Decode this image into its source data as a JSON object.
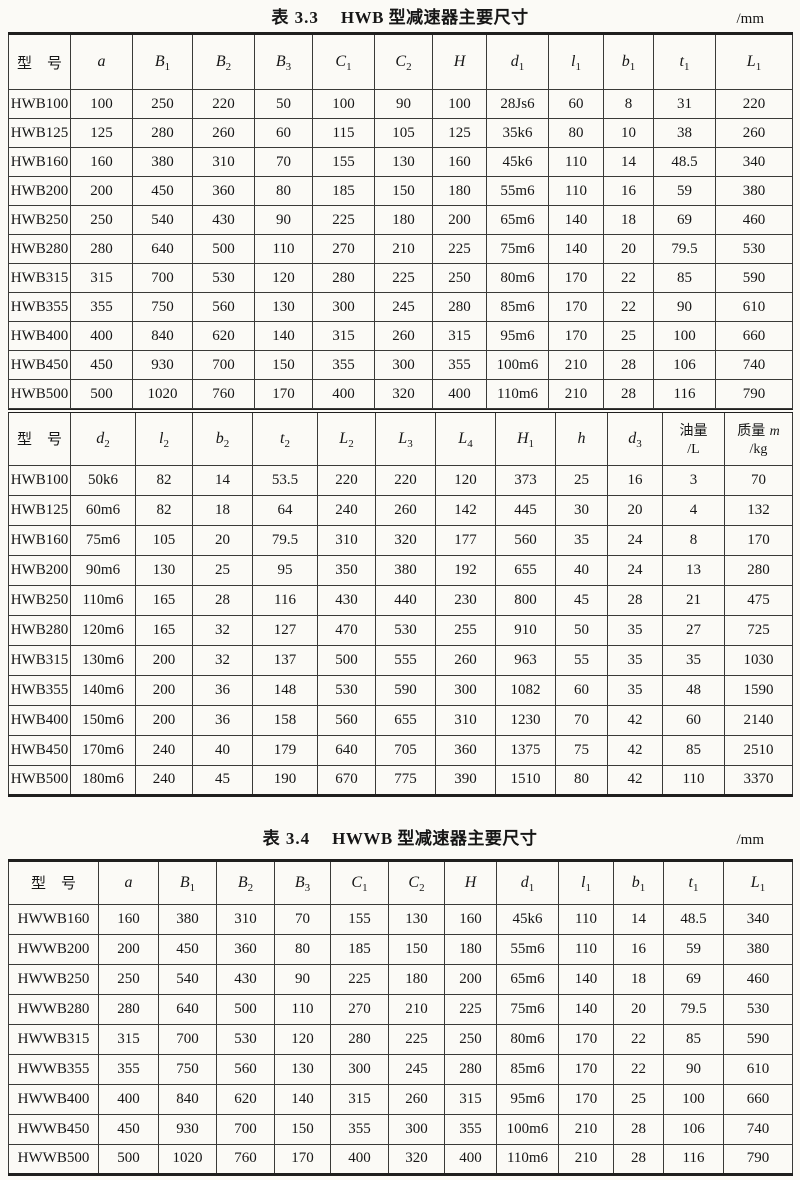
{
  "colors": {
    "paper": "#fbfaf6",
    "ink": "#161616",
    "rule": "#1f1f1e"
  },
  "table1": {
    "caption_label": "表 3.3",
    "caption_title": "HWB 型减速器主要尺寸",
    "unit": "/mm",
    "section1": {
      "headers": [
        [
          {
            "t": "型　号",
            "cjk": true
          }
        ],
        [
          {
            "t": "a",
            "i": true
          }
        ],
        [
          {
            "t": "B",
            "i": true
          },
          {
            "t": "1",
            "sub": true
          }
        ],
        [
          {
            "t": "B",
            "i": true
          },
          {
            "t": "2",
            "sub": true
          }
        ],
        [
          {
            "t": "B",
            "i": true
          },
          {
            "t": "3",
            "sub": true
          }
        ],
        [
          {
            "t": "C",
            "i": true
          },
          {
            "t": "1",
            "sub": true
          }
        ],
        [
          {
            "t": "C",
            "i": true
          },
          {
            "t": "2",
            "sub": true
          }
        ],
        [
          {
            "t": "H",
            "i": true
          }
        ],
        [
          {
            "t": "d",
            "i": true
          },
          {
            "t": "1",
            "sub": true
          }
        ],
        [
          {
            "t": "l",
            "i": true
          },
          {
            "t": "1",
            "sub": true
          }
        ],
        [
          {
            "t": "b",
            "i": true
          },
          {
            "t": "1",
            "sub": true
          }
        ],
        [
          {
            "t": "t",
            "i": true
          },
          {
            "t": "1",
            "sub": true
          }
        ],
        [
          {
            "t": "L",
            "i": true
          },
          {
            "t": "1",
            "sub": true
          }
        ]
      ],
      "rows": [
        [
          "HWB100",
          "100",
          "250",
          "220",
          "50",
          "100",
          "90",
          "100",
          "28Js6",
          "60",
          "8",
          "31",
          "220"
        ],
        [
          "HWB125",
          "125",
          "280",
          "260",
          "60",
          "115",
          "105",
          "125",
          "35k6",
          "80",
          "10",
          "38",
          "260"
        ],
        [
          "HWB160",
          "160",
          "380",
          "310",
          "70",
          "155",
          "130",
          "160",
          "45k6",
          "110",
          "14",
          "48.5",
          "340"
        ],
        [
          "HWB200",
          "200",
          "450",
          "360",
          "80",
          "185",
          "150",
          "180",
          "55m6",
          "110",
          "16",
          "59",
          "380"
        ],
        [
          "HWB250",
          "250",
          "540",
          "430",
          "90",
          "225",
          "180",
          "200",
          "65m6",
          "140",
          "18",
          "69",
          "460"
        ],
        [
          "HWB280",
          "280",
          "640",
          "500",
          "110",
          "270",
          "210",
          "225",
          "75m6",
          "140",
          "20",
          "79.5",
          "530"
        ],
        [
          "HWB315",
          "315",
          "700",
          "530",
          "120",
          "280",
          "225",
          "250",
          "80m6",
          "170",
          "22",
          "85",
          "590"
        ],
        [
          "HWB355",
          "355",
          "750",
          "560",
          "130",
          "300",
          "245",
          "280",
          "85m6",
          "170",
          "22",
          "90",
          "610"
        ],
        [
          "HWB400",
          "400",
          "840",
          "620",
          "140",
          "315",
          "260",
          "315",
          "95m6",
          "170",
          "25",
          "100",
          "660"
        ],
        [
          "HWB450",
          "450",
          "930",
          "700",
          "150",
          "355",
          "300",
          "355",
          "100m6",
          "210",
          "28",
          "106",
          "740"
        ],
        [
          "HWB500",
          "500",
          "1020",
          "760",
          "170",
          "400",
          "320",
          "400",
          "110m6",
          "210",
          "28",
          "116",
          "790"
        ]
      ]
    },
    "section2": {
      "headers": [
        [
          {
            "t": "型　号",
            "cjk": true
          }
        ],
        [
          {
            "t": "d",
            "i": true
          },
          {
            "t": "2",
            "sub": true
          }
        ],
        [
          {
            "t": "l",
            "i": true
          },
          {
            "t": "2",
            "sub": true
          }
        ],
        [
          {
            "t": "b",
            "i": true
          },
          {
            "t": "2",
            "sub": true
          }
        ],
        [
          {
            "t": "t",
            "i": true
          },
          {
            "t": "2",
            "sub": true
          }
        ],
        [
          {
            "t": "L",
            "i": true
          },
          {
            "t": "2",
            "sub": true
          }
        ],
        [
          {
            "t": "L",
            "i": true
          },
          {
            "t": "3",
            "sub": true
          }
        ],
        [
          {
            "t": "L",
            "i": true
          },
          {
            "t": "4",
            "sub": true
          }
        ],
        [
          {
            "t": "H",
            "i": true
          },
          {
            "t": "1",
            "sub": true
          }
        ],
        [
          {
            "t": "h",
            "i": true
          }
        ],
        [
          {
            "t": "d",
            "i": true
          },
          {
            "t": "3",
            "sub": true
          }
        ],
        [
          {
            "t": "油量",
            "cjk": true,
            "small": true
          },
          {
            "t": "/L",
            "br": true,
            "small": true
          }
        ],
        [
          {
            "t": "质量 ",
            "cjk": true,
            "small": true
          },
          {
            "t": "m",
            "i": true,
            "small": true
          },
          {
            "t": "/kg",
            "br": true,
            "small": true
          }
        ]
      ],
      "rows": [
        [
          "HWB100",
          "50k6",
          "82",
          "14",
          "53.5",
          "220",
          "220",
          "120",
          "373",
          "25",
          "16",
          "3",
          "70"
        ],
        [
          "HWB125",
          "60m6",
          "82",
          "18",
          "64",
          "240",
          "260",
          "142",
          "445",
          "30",
          "20",
          "4",
          "132"
        ],
        [
          "HWB160",
          "75m6",
          "105",
          "20",
          "79.5",
          "310",
          "320",
          "177",
          "560",
          "35",
          "24",
          "8",
          "170"
        ],
        [
          "HWB200",
          "90m6",
          "130",
          "25",
          "95",
          "350",
          "380",
          "192",
          "655",
          "40",
          "24",
          "13",
          "280"
        ],
        [
          "HWB250",
          "110m6",
          "165",
          "28",
          "116",
          "430",
          "440",
          "230",
          "800",
          "45",
          "28",
          "21",
          "475"
        ],
        [
          "HWB280",
          "120m6",
          "165",
          "32",
          "127",
          "470",
          "530",
          "255",
          "910",
          "50",
          "35",
          "27",
          "725"
        ],
        [
          "HWB315",
          "130m6",
          "200",
          "32",
          "137",
          "500",
          "555",
          "260",
          "963",
          "55",
          "35",
          "35",
          "1030"
        ],
        [
          "HWB355",
          "140m6",
          "200",
          "36",
          "148",
          "530",
          "590",
          "300",
          "1082",
          "60",
          "35",
          "48",
          "1590"
        ],
        [
          "HWB400",
          "150m6",
          "200",
          "36",
          "158",
          "560",
          "655",
          "310",
          "1230",
          "70",
          "42",
          "60",
          "2140"
        ],
        [
          "HWB450",
          "170m6",
          "240",
          "40",
          "179",
          "640",
          "705",
          "360",
          "1375",
          "75",
          "42",
          "85",
          "2510"
        ],
        [
          "HWB500",
          "180m6",
          "240",
          "45",
          "190",
          "670",
          "775",
          "390",
          "1510",
          "80",
          "42",
          "110",
          "3370"
        ]
      ]
    }
  },
  "table2": {
    "caption_label": "表 3.4",
    "caption_title": "HWWB 型减速器主要尺寸",
    "unit": "/mm",
    "headers": [
      [
        {
          "t": "型　号",
          "cjk": true
        }
      ],
      [
        {
          "t": "a",
          "i": true
        }
      ],
      [
        {
          "t": "B",
          "i": true
        },
        {
          "t": "1",
          "sub": true
        }
      ],
      [
        {
          "t": "B",
          "i": true
        },
        {
          "t": "2",
          "sub": true
        }
      ],
      [
        {
          "t": "B",
          "i": true
        },
        {
          "t": "3",
          "sub": true
        }
      ],
      [
        {
          "t": "C",
          "i": true
        },
        {
          "t": "1",
          "sub": true
        }
      ],
      [
        {
          "t": "C",
          "i": true
        },
        {
          "t": "2",
          "sub": true
        }
      ],
      [
        {
          "t": "H",
          "i": true
        }
      ],
      [
        {
          "t": "d",
          "i": true
        },
        {
          "t": "1",
          "sub": true
        }
      ],
      [
        {
          "t": "l",
          "i": true
        },
        {
          "t": "1",
          "sub": true
        }
      ],
      [
        {
          "t": "b",
          "i": true
        },
        {
          "t": "1",
          "sub": true
        }
      ],
      [
        {
          "t": "t",
          "i": true
        },
        {
          "t": "1",
          "sub": true
        }
      ],
      [
        {
          "t": "L",
          "i": true
        },
        {
          "t": "1",
          "sub": true
        }
      ]
    ],
    "rows": [
      [
        "HWWB160",
        "160",
        "380",
        "310",
        "70",
        "155",
        "130",
        "160",
        "45k6",
        "110",
        "14",
        "48.5",
        "340"
      ],
      [
        "HWWB200",
        "200",
        "450",
        "360",
        "80",
        "185",
        "150",
        "180",
        "55m6",
        "110",
        "16",
        "59",
        "380"
      ],
      [
        "HWWB250",
        "250",
        "540",
        "430",
        "90",
        "225",
        "180",
        "200",
        "65m6",
        "140",
        "18",
        "69",
        "460"
      ],
      [
        "HWWB280",
        "280",
        "640",
        "500",
        "110",
        "270",
        "210",
        "225",
        "75m6",
        "140",
        "20",
        "79.5",
        "530"
      ],
      [
        "HWWB315",
        "315",
        "700",
        "530",
        "120",
        "280",
        "225",
        "250",
        "80m6",
        "170",
        "22",
        "85",
        "590"
      ],
      [
        "HWWB355",
        "355",
        "750",
        "560",
        "130",
        "300",
        "245",
        "280",
        "85m6",
        "170",
        "22",
        "90",
        "610"
      ],
      [
        "HWWB400",
        "400",
        "840",
        "620",
        "140",
        "315",
        "260",
        "315",
        "95m6",
        "170",
        "25",
        "100",
        "660"
      ],
      [
        "HWWB450",
        "450",
        "930",
        "700",
        "150",
        "355",
        "300",
        "355",
        "100m6",
        "210",
        "28",
        "106",
        "740"
      ],
      [
        "HWWB500",
        "500",
        "1020",
        "760",
        "170",
        "400",
        "320",
        "400",
        "110m6",
        "210",
        "28",
        "116",
        "790"
      ]
    ]
  }
}
